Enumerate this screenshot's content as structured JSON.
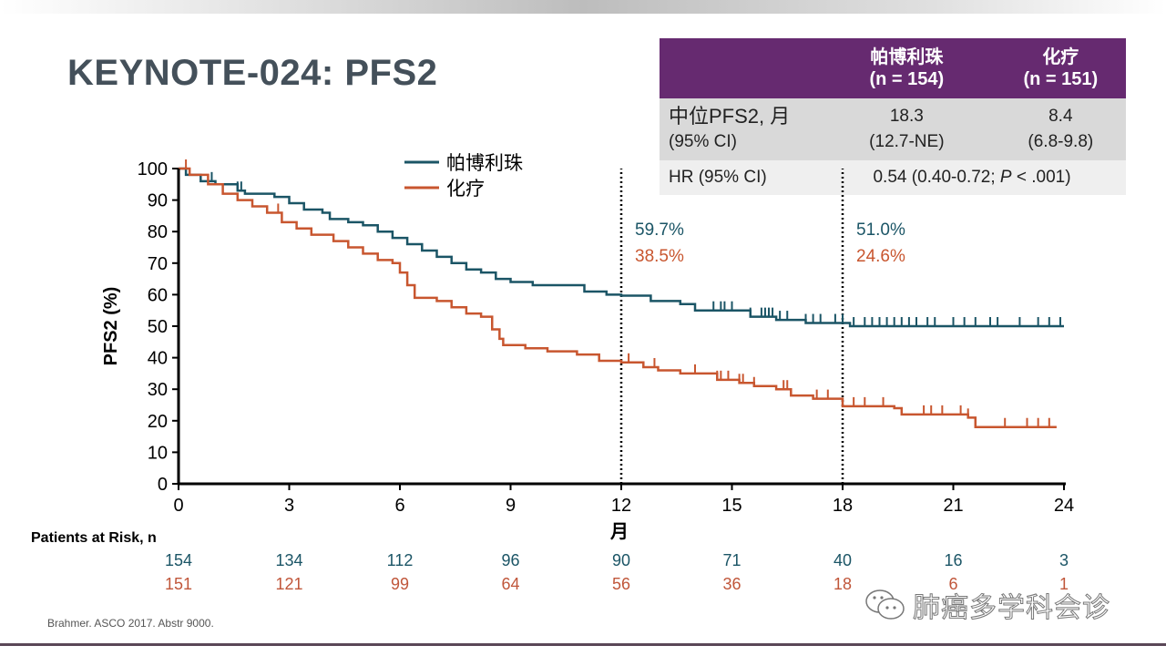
{
  "slide": {
    "title": "KEYNOTE-024: PFS2",
    "footnote": "Brahmer. ASCO 2017. Abstr 9000.",
    "watermark": "肺癌多学科会诊",
    "watermark_icon": "wechat-icon"
  },
  "stats_table": {
    "header": [
      {
        "name": "帕博利珠",
        "n": "(n = 154)"
      },
      {
        "name": "化疗",
        "n": "(n = 151)"
      }
    ],
    "rows": [
      {
        "label_line1": "中位PFS2, 月",
        "label_line2": "(95% CI)",
        "pembro_line1": "18.3",
        "pembro_line2": "(12.7-NE)",
        "chemo_line1": "8.4",
        "chemo_line2": "(6.8-9.8)"
      }
    ],
    "hr_row": {
      "label": "HR (95% CI)",
      "value_prefix": "0.54 (0.40-0.72; ",
      "p_italic": "P",
      "value_suffix": " < .001)"
    }
  },
  "risk_table": {
    "title": "Patients at Risk, n",
    "pembro": [
      "154",
      "134",
      "112",
      "96",
      "90",
      "71",
      "40",
      "16",
      "3"
    ],
    "chemo": [
      "151",
      "121",
      "99",
      "64",
      "56",
      "36",
      "18",
      "6",
      "1"
    ]
  },
  "chart_data": {
    "type": "line",
    "subtype": "kaplan-meier step",
    "xlabel": "月",
    "ylabel": "PFS2 (%)",
    "xlim": [
      0,
      24
    ],
    "ylim": [
      0,
      100
    ],
    "xticks": [
      0,
      3,
      6,
      9,
      12,
      15,
      18,
      21,
      24
    ],
    "yticks": [
      0,
      10,
      20,
      30,
      40,
      50,
      60,
      70,
      80,
      90,
      100
    ],
    "grid": false,
    "legend": {
      "placement": "top-center",
      "entries": [
        "帕博利珠",
        "化疗"
      ]
    },
    "colors": {
      "pembro": "#1b5566",
      "chemo": "#c8562f"
    },
    "reference_lines": [
      12,
      18
    ],
    "annotations": [
      {
        "x": 12,
        "pembro": "59.7%",
        "chemo": "38.5%"
      },
      {
        "x": 18,
        "pembro": "51.0%",
        "chemo": "24.6%"
      }
    ],
    "series": [
      {
        "name": "帕博利珠",
        "key": "pembro",
        "points": [
          [
            0,
            100
          ],
          [
            0.2,
            98
          ],
          [
            0.6,
            96
          ],
          [
            1.0,
            95
          ],
          [
            1.6,
            93
          ],
          [
            1.8,
            92
          ],
          [
            2.0,
            92
          ],
          [
            2.6,
            91
          ],
          [
            3.0,
            89
          ],
          [
            3.4,
            87
          ],
          [
            3.9,
            86
          ],
          [
            4.1,
            84
          ],
          [
            4.6,
            83
          ],
          [
            5.0,
            82
          ],
          [
            5.4,
            80
          ],
          [
            5.8,
            78
          ],
          [
            6.2,
            76
          ],
          [
            6.6,
            74
          ],
          [
            7.0,
            72
          ],
          [
            7.4,
            70
          ],
          [
            7.8,
            68
          ],
          [
            8.2,
            67
          ],
          [
            8.6,
            65
          ],
          [
            9.0,
            64
          ],
          [
            9.6,
            63
          ],
          [
            10.4,
            63
          ],
          [
            11.0,
            61
          ],
          [
            11.6,
            60
          ],
          [
            12.0,
            59.7
          ],
          [
            12.8,
            58
          ],
          [
            13.6,
            57
          ],
          [
            14.0,
            55
          ],
          [
            15.0,
            55
          ],
          [
            15.5,
            53
          ],
          [
            16.2,
            52
          ],
          [
            17.0,
            51
          ],
          [
            18.0,
            51.0
          ],
          [
            18.2,
            50
          ],
          [
            24.0,
            50
          ]
        ],
        "censor_x": [
          0.9,
          1.6,
          1.7,
          14.5,
          14.7,
          14.8,
          15.0,
          15.5,
          15.8,
          15.9,
          16.0,
          16.1,
          16.3,
          16.5,
          17.0,
          17.2,
          17.4,
          17.8,
          18.0,
          18.3,
          18.6,
          18.8,
          19.0,
          19.2,
          19.4,
          19.6,
          19.8,
          20.0,
          20.3,
          20.5,
          21.0,
          21.3,
          21.6,
          22.0,
          22.2,
          22.8,
          23.3,
          23.6,
          23.9
        ]
      },
      {
        "name": "化疗",
        "key": "chemo",
        "points": [
          [
            0,
            100
          ],
          [
            0.3,
            98
          ],
          [
            0.8,
            95
          ],
          [
            1.2,
            92
          ],
          [
            1.6,
            90
          ],
          [
            2.0,
            88
          ],
          [
            2.4,
            86
          ],
          [
            2.8,
            83
          ],
          [
            3.2,
            81
          ],
          [
            3.6,
            79
          ],
          [
            4.2,
            77
          ],
          [
            4.6,
            75
          ],
          [
            5.0,
            73
          ],
          [
            5.4,
            71
          ],
          [
            5.8,
            70
          ],
          [
            6.0,
            67
          ],
          [
            6.2,
            63
          ],
          [
            6.4,
            59
          ],
          [
            7.0,
            58
          ],
          [
            7.4,
            56
          ],
          [
            7.8,
            54
          ],
          [
            8.2,
            53
          ],
          [
            8.5,
            49
          ],
          [
            8.7,
            46
          ],
          [
            8.8,
            44
          ],
          [
            9.4,
            43
          ],
          [
            10.0,
            42
          ],
          [
            10.8,
            41
          ],
          [
            11.4,
            39
          ],
          [
            12.0,
            38.5
          ],
          [
            12.6,
            37
          ],
          [
            13.0,
            36
          ],
          [
            13.6,
            35
          ],
          [
            14.4,
            35
          ],
          [
            14.6,
            33
          ],
          [
            15.2,
            32
          ],
          [
            15.6,
            31
          ],
          [
            16.2,
            30
          ],
          [
            16.6,
            28
          ],
          [
            17.2,
            27
          ],
          [
            18.0,
            24.6
          ],
          [
            19.4,
            24
          ],
          [
            19.6,
            22
          ],
          [
            21.4,
            21
          ],
          [
            21.6,
            18
          ],
          [
            23.8,
            18
          ]
        ],
        "censor_x": [
          0.2,
          2.7,
          6.2,
          8.5,
          12.2,
          12.9,
          14.0,
          14.6,
          14.7,
          14.9,
          15.2,
          15.3,
          15.6,
          16.4,
          16.5,
          17.3,
          17.6,
          18.3,
          18.6,
          19.1,
          20.2,
          20.4,
          20.7,
          21.2,
          21.4,
          21.6,
          22.4,
          23.0,
          23.3,
          23.6
        ]
      }
    ]
  }
}
